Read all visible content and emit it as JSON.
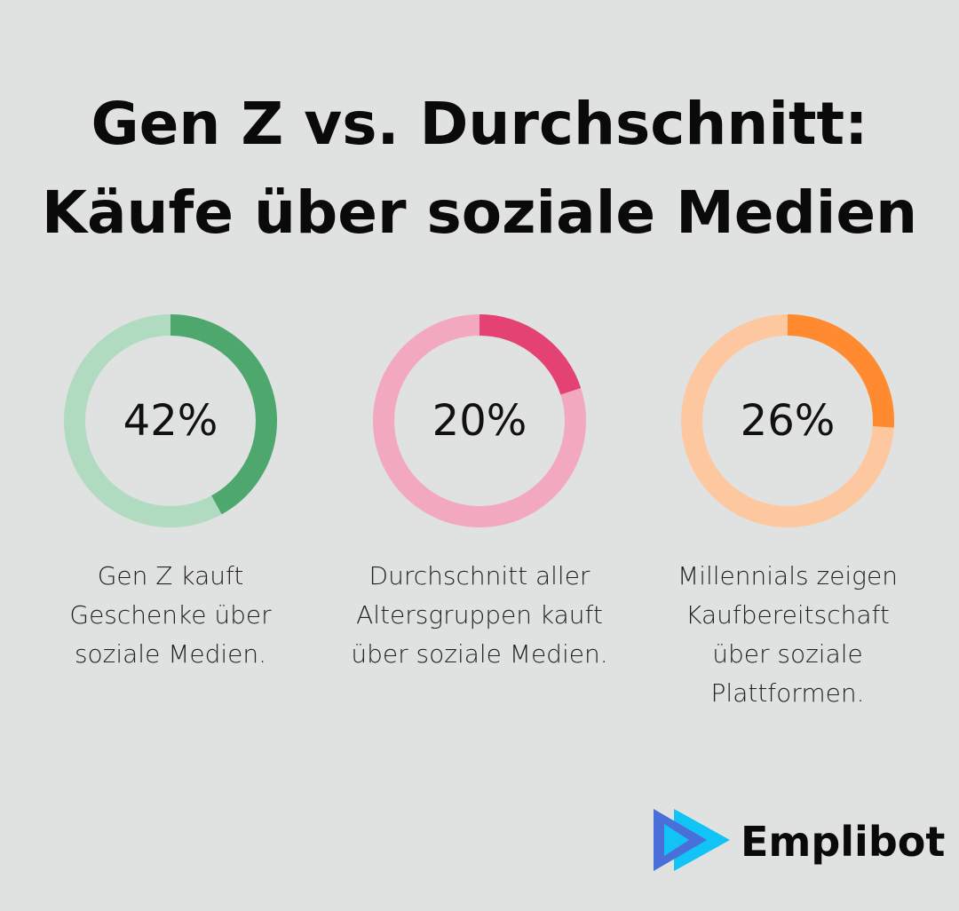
{
  "title_line1": "Gen Z vs. Durchschnitt:",
  "title_line2": "Käufe über soziale Medien",
  "chart_data": [
    {
      "type": "pie",
      "variant": "donut",
      "value": 42,
      "label": "42%",
      "description": "Gen Z kauft Geschenke über soziale Medien.",
      "color": "#4ea86e",
      "track_color": "#b0dbc1"
    },
    {
      "type": "pie",
      "variant": "donut",
      "value": 20,
      "label": "20%",
      "description": "Durchschnitt aller Altersgruppen kauft über soziale Medien.",
      "color": "#e34273",
      "track_color": "#f2a9c0"
    },
    {
      "type": "pie",
      "variant": "donut",
      "value": 26,
      "label": "26%",
      "description": "Millennials zeigen Kaufbereitschaft über soziale Plattformen.",
      "color": "#ff8a30",
      "track_color": "#fdc8a0"
    }
  ],
  "brand": {
    "name": "Emplibot",
    "colors": [
      "#4a6fd8",
      "#12c4f5"
    ]
  }
}
